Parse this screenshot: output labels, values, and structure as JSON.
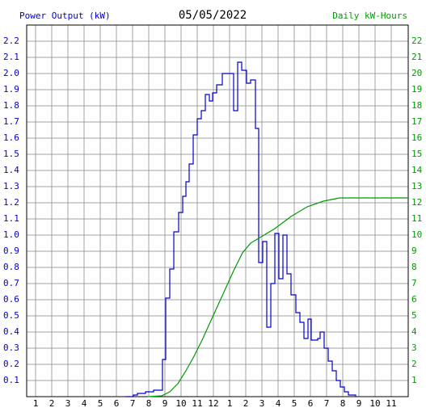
{
  "chart_data": {
    "type": "line",
    "title": "05/05/2022",
    "y_label": "Power Output (kW)",
    "y2_label": "Daily kW-Hours",
    "xlim": [
      0.45,
      24.05
    ],
    "xticks": [
      1,
      2,
      3,
      4,
      5,
      6,
      7,
      8,
      9,
      10,
      11,
      12,
      {
        "value": 13,
        "label": "1"
      },
      {
        "value": 14,
        "label": "2"
      },
      {
        "value": 15,
        "label": "3"
      },
      {
        "value": 16,
        "label": "4"
      },
      {
        "value": 17,
        "label": "5"
      },
      {
        "value": 18,
        "label": "6"
      },
      {
        "value": 19,
        "label": "7"
      },
      {
        "value": 20,
        "label": "8"
      },
      {
        "value": 21,
        "label": "9"
      },
      {
        "value": 22,
        "label": "10"
      },
      {
        "value": 23,
        "label": "11"
      }
    ],
    "ylim": [
      0,
      2.3
    ],
    "yticks": [
      0.1,
      0.2,
      0.3,
      0.4,
      0.5,
      0.6,
      0.7,
      0.8,
      0.9,
      {
        "value": 1,
        "label": "1.0"
      },
      1.1,
      1.2,
      1.3,
      1.4,
      1.5,
      1.6,
      1.7,
      1.8,
      1.9,
      {
        "value": 2,
        "label": "2.0"
      },
      2.1,
      2.2
    ],
    "y2lim": [
      0,
      23
    ],
    "y2ticks": [
      1,
      2,
      3,
      4,
      5,
      6,
      7,
      8,
      9,
      10,
      11,
      12,
      13,
      14,
      15,
      16,
      17,
      18,
      19,
      20,
      21,
      22
    ],
    "grid": true,
    "series": [
      {
        "name": "Power Output (kW)",
        "color": "#0000cc",
        "step": true,
        "x": [
          6.55,
          7.05,
          7.3,
          7.8,
          8.3,
          8.85,
          9.05,
          9.3,
          9.55,
          9.85,
          10.1,
          10.3,
          10.5,
          10.75,
          11,
          11.25,
          11.5,
          11.75,
          11.95,
          12.2,
          12.55,
          13.25,
          13.5,
          13.75,
          14.05,
          14.3,
          14.6,
          14.8,
          15.05,
          15.3,
          15.55,
          15.8,
          16.05,
          16.3,
          16.55,
          16.8,
          17.1,
          17.35,
          17.6,
          17.85,
          18.05,
          18.45,
          18.6,
          18.85,
          19.1,
          19.35,
          19.6,
          19.85,
          20.1,
          20.35,
          20.8
        ],
        "values": [
          0,
          0.01,
          0.02,
          0.03,
          0.04,
          0.23,
          0.61,
          0.79,
          1.02,
          1.14,
          1.24,
          1.33,
          1.44,
          1.62,
          1.72,
          1.77,
          1.87,
          1.83,
          1.88,
          1.93,
          2.0,
          1.77,
          2.07,
          2.02,
          1.94,
          1.96,
          1.66,
          0.83,
          0.96,
          0.43,
          0.7,
          1.01,
          0.73,
          1.0,
          0.76,
          0.63,
          0.52,
          0.46,
          0.36,
          0.48,
          0.35,
          0.36,
          0.4,
          0.3,
          0.22,
          0.16,
          0.1,
          0.06,
          0.03,
          0.01,
          0
        ]
      },
      {
        "name": "Daily kW-Hours",
        "color": "#009900",
        "step": false,
        "axis": "y2",
        "x": [
          7.95,
          8.8,
          9.3,
          9.8,
          10.3,
          10.8,
          11.3,
          11.8,
          12.3,
          12.8,
          13.3,
          13.8,
          14.3,
          14.8,
          15.8,
          16.8,
          17.8,
          18.8,
          19.8,
          24.05
        ],
        "values": [
          0,
          0.05,
          0.3,
          0.8,
          1.6,
          2.5,
          3.5,
          4.6,
          5.7,
          6.8,
          7.9,
          8.9,
          9.5,
          9.8,
          10.4,
          11.15,
          11.75,
          12.1,
          12.3,
          12.3
        ]
      }
    ]
  }
}
